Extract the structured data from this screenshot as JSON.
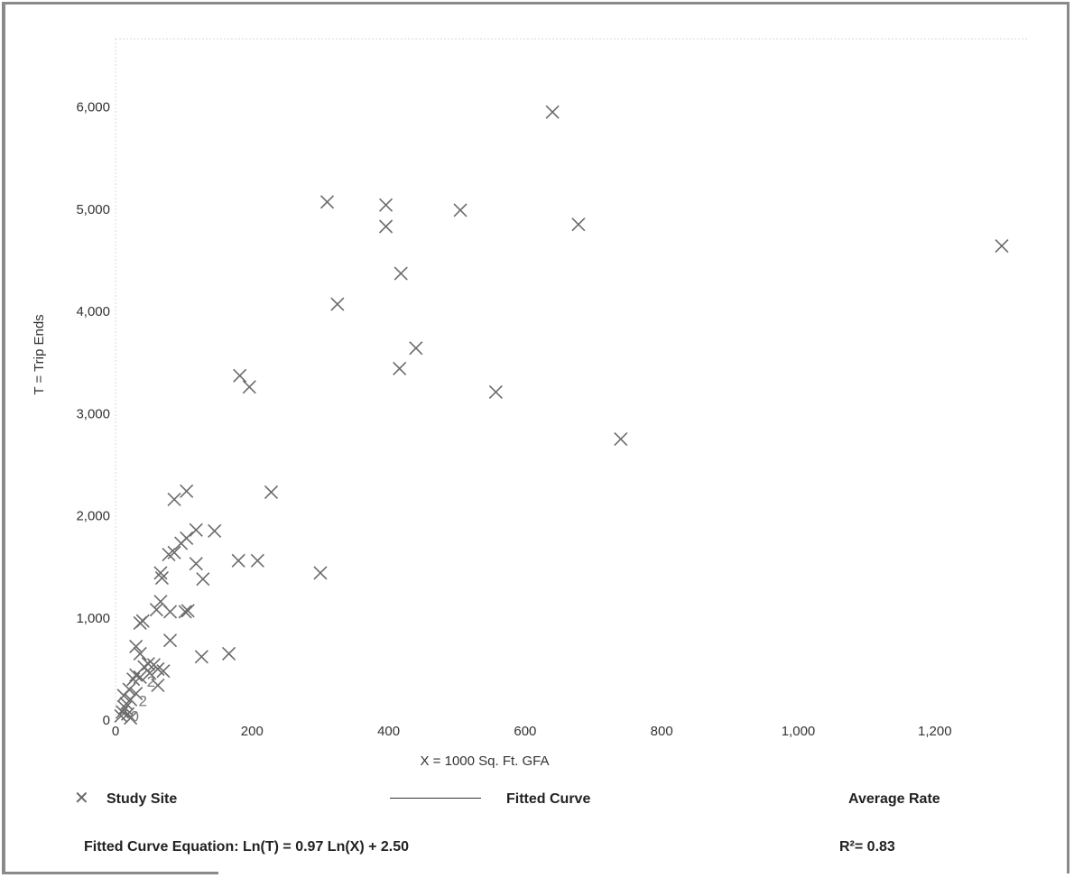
{
  "chart_data": {
    "type": "scatter",
    "xlabel": "X = 1000 Sq. Ft. GFA",
    "ylabel": "T = Trip Ends",
    "xlim": [
      0,
      1300
    ],
    "ylim": [
      0,
      6400
    ],
    "x_ticks": [
      0,
      200,
      400,
      600,
      800,
      1000,
      1200
    ],
    "x_tick_labels": [
      "0",
      "200",
      "400",
      "600",
      "800",
      "1,000",
      "1,200"
    ],
    "y_ticks": [
      0,
      1000,
      2000,
      3000,
      4000,
      5000,
      6000
    ],
    "y_tick_labels": [
      "0",
      "1,000",
      "2,000",
      "3,000",
      "4,000",
      "5,000",
      "6,000"
    ],
    "grid": false,
    "series": [
      {
        "name": "Study Site",
        "marker": "x",
        "color": "#6b6b6b",
        "points": [
          [
            640,
            5950
          ],
          [
            310,
            5070
          ],
          [
            396,
            5040
          ],
          [
            396,
            4830
          ],
          [
            505,
            4990
          ],
          [
            678,
            4850
          ],
          [
            1298,
            4640
          ],
          [
            418,
            4370
          ],
          [
            325,
            4070
          ],
          [
            440,
            3640
          ],
          [
            416,
            3440
          ],
          [
            557,
            3210
          ],
          [
            740,
            2750
          ],
          [
            182,
            3370
          ],
          [
            196,
            3260
          ],
          [
            104,
            2240
          ],
          [
            86,
            2160
          ],
          [
            228,
            2230
          ],
          [
            118,
            1860
          ],
          [
            145,
            1850
          ],
          [
            104,
            1780
          ],
          [
            96,
            1730
          ],
          [
            86,
            1640
          ],
          [
            78,
            1620
          ],
          [
            118,
            1530
          ],
          [
            180,
            1560
          ],
          [
            208,
            1560
          ],
          [
            300,
            1440
          ],
          [
            66,
            1440
          ],
          [
            68,
            1390
          ],
          [
            128,
            1380
          ],
          [
            66,
            1160
          ],
          [
            60,
            1080
          ],
          [
            80,
            1060
          ],
          [
            102,
            1060
          ],
          [
            106,
            1070
          ],
          [
            40,
            970
          ],
          [
            36,
            950
          ],
          [
            80,
            780
          ],
          [
            30,
            720
          ],
          [
            126,
            620
          ],
          [
            166,
            650
          ],
          [
            36,
            650
          ],
          [
            48,
            550
          ],
          [
            56,
            540
          ],
          [
            42,
            520
          ],
          [
            62,
            500
          ],
          [
            70,
            480
          ],
          [
            50,
            460
          ],
          [
            30,
            440
          ],
          [
            36,
            420
          ],
          [
            26,
            400
          ],
          [
            62,
            340
          ],
          [
            20,
            300
          ],
          [
            30,
            260
          ],
          [
            12,
            240
          ],
          [
            22,
            200
          ],
          [
            16,
            160
          ],
          [
            14,
            120
          ],
          [
            10,
            80
          ],
          [
            18,
            60
          ],
          [
            8,
            40
          ],
          [
            22,
            20
          ]
        ]
      }
    ],
    "cluster_labels": [
      {
        "text": "2",
        "x": 52,
        "y": 380
      },
      {
        "text": "2",
        "x": 40,
        "y": 190
      },
      {
        "text": "0",
        "x": 28,
        "y": 40
      }
    ],
    "legend": {
      "placement": "bottom",
      "entries": [
        {
          "label": "Study Site",
          "symbol": "x"
        },
        {
          "label": "Fitted Curve",
          "symbol": "line"
        },
        {
          "label": "Average Rate",
          "symbol": "none"
        }
      ]
    },
    "equation": "Fitted Curve Equation: Ln(T) = 0.97 Ln(X) + 2.50",
    "r_squared": "R²= 0.83"
  }
}
